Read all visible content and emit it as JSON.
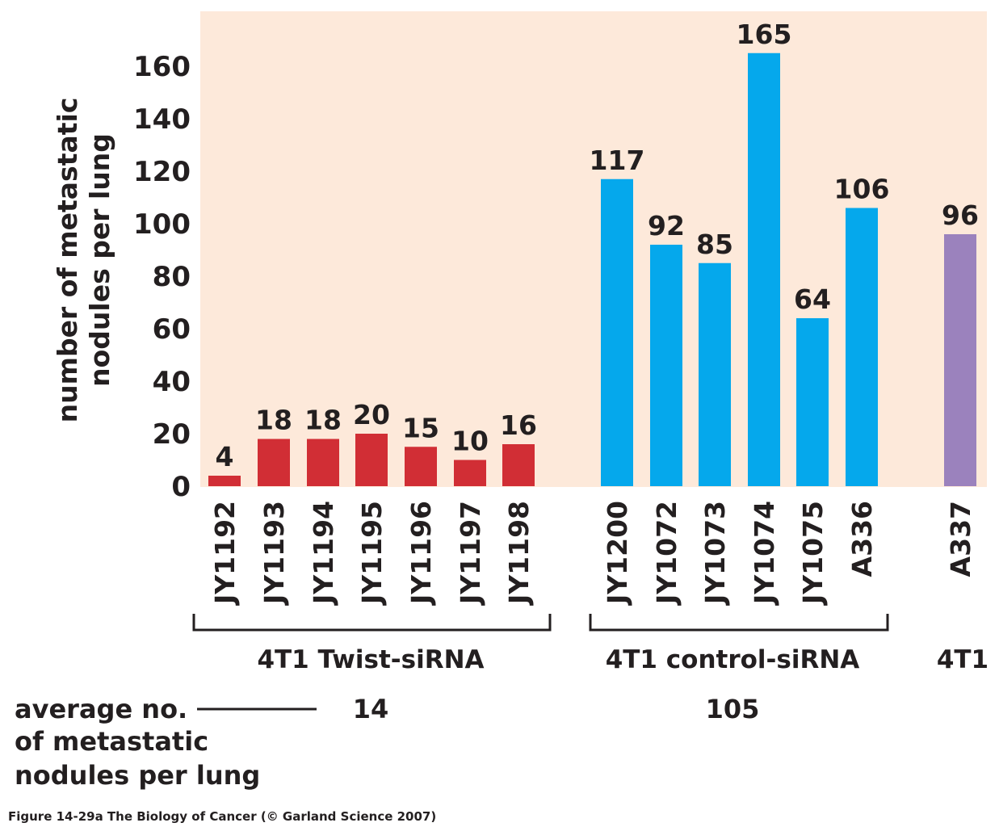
{
  "chart_data": {
    "type": "bar",
    "ylabel": [
      "number of metastatic",
      "nodules per lung"
    ],
    "ylim": [
      0,
      180
    ],
    "yticks": [
      0,
      20,
      40,
      60,
      80,
      100,
      120,
      140,
      160
    ],
    "categories": [
      "JY1192",
      "JY1193",
      "JY1194",
      "JY1195",
      "JY1196",
      "JY1197",
      "JY1198",
      "JY1200",
      "JY1072",
      "JY1073",
      "JY1074",
      "JY1075",
      "A336",
      "A337"
    ],
    "values": [
      4,
      18,
      18,
      20,
      15,
      10,
      16,
      117,
      92,
      85,
      165,
      64,
      106,
      96
    ],
    "groups": [
      {
        "name": "4T1 Twist-siRNA",
        "color": "#d12e35",
        "start": 0,
        "end": 6,
        "average": "14"
      },
      {
        "name": "4T1 control-siRNA",
        "color": "#05a8ec",
        "start": 7,
        "end": 12,
        "average": "105"
      },
      {
        "name": "4T1",
        "color": "#9b82bd",
        "start": 13,
        "end": 13
      }
    ],
    "average_label": [
      "average no.",
      "of metastatic",
      "nodules per lung"
    ],
    "background": "#fde9da"
  },
  "caption": "Figure 14-29a  The Biology of Cancer (© Garland Science 2007)"
}
